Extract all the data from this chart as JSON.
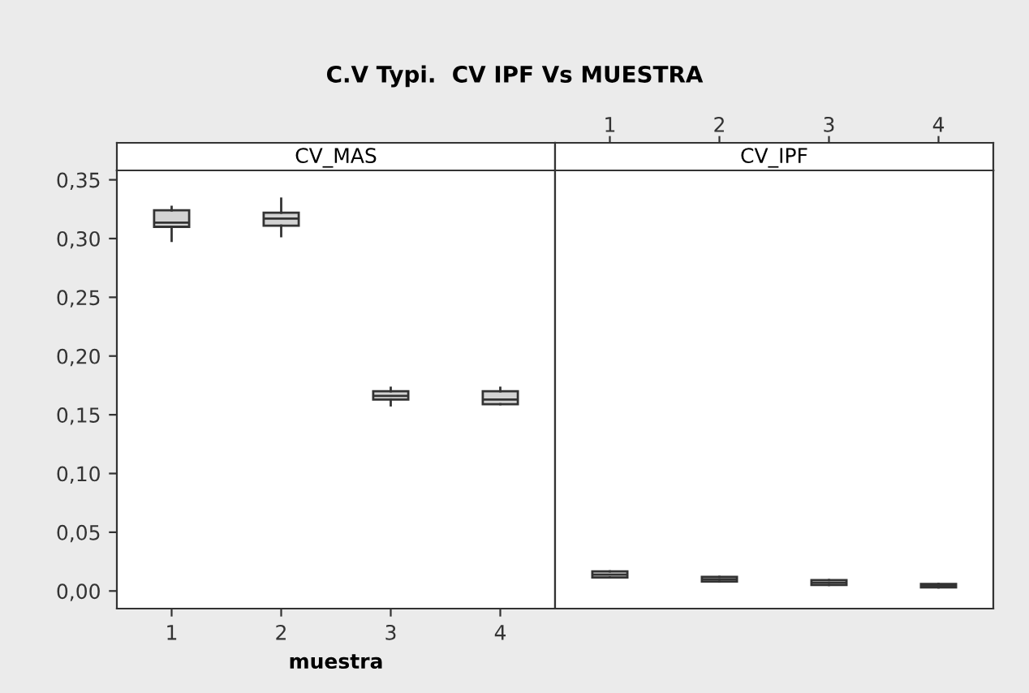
{
  "chart_data": [
    {
      "type": "box",
      "title": "C.V Typi.  CV IPF Vs MUESTRA",
      "subtitle": "CV_MAS",
      "xlabel": "muestra",
      "categories": [
        "1",
        "2",
        "3",
        "4"
      ],
      "color": "#d3d3d3",
      "ylim": [
        -0.015,
        0.358
      ],
      "yticks": [
        {
          "value": 0,
          "label": "0,00"
        },
        {
          "value": 0.05,
          "label": "0,05"
        },
        {
          "value": 0.1,
          "label": "0,10"
        },
        {
          "value": 0.15,
          "label": "0,15"
        },
        {
          "value": 0.2,
          "label": "0,20"
        },
        {
          "value": 0.25,
          "label": "0,25"
        },
        {
          "value": 0.3,
          "label": "0,30"
        },
        {
          "value": 0.35,
          "label": "0,35"
        }
      ],
      "grid": false,
      "boxes": [
        {
          "low": 0.298,
          "q1": 0.31,
          "median": 0.3135,
          "q3": 0.324,
          "high": 0.327
        },
        {
          "low": 0.302,
          "q1": 0.311,
          "median": 0.317,
          "q3": 0.322,
          "high": 0.334
        },
        {
          "low": 0.158,
          "q1": 0.163,
          "median": 0.166,
          "q3": 0.17,
          "high": 0.173
        },
        {
          "low": 0.159,
          "q1": 0.159,
          "median": 0.163,
          "q3": 0.17,
          "high": 0.173
        }
      ]
    },
    {
      "type": "box",
      "subtitle": "CV_IPF",
      "categories": [
        "1",
        "2",
        "3",
        "4"
      ],
      "color": "#d3d3d3",
      "ylim": [
        -0.015,
        0.358
      ],
      "tick_labels": "x",
      "grid": false,
      "boxes": [
        {
          "low": 0.0115,
          "q1": 0.0115,
          "median": 0.014,
          "q3": 0.0167,
          "high": 0.0167
        },
        {
          "low": 0.008,
          "q1": 0.008,
          "median": 0.01,
          "q3": 0.012,
          "high": 0.012
        },
        {
          "low": 0.0051,
          "q1": 0.0051,
          "median": 0.007,
          "q3": 0.0093,
          "high": 0.0093
        },
        {
          "low": 0.003,
          "q1": 0.003,
          "median": 0.0045,
          "q3": 0.006,
          "high": 0.006
        }
      ]
    }
  ]
}
